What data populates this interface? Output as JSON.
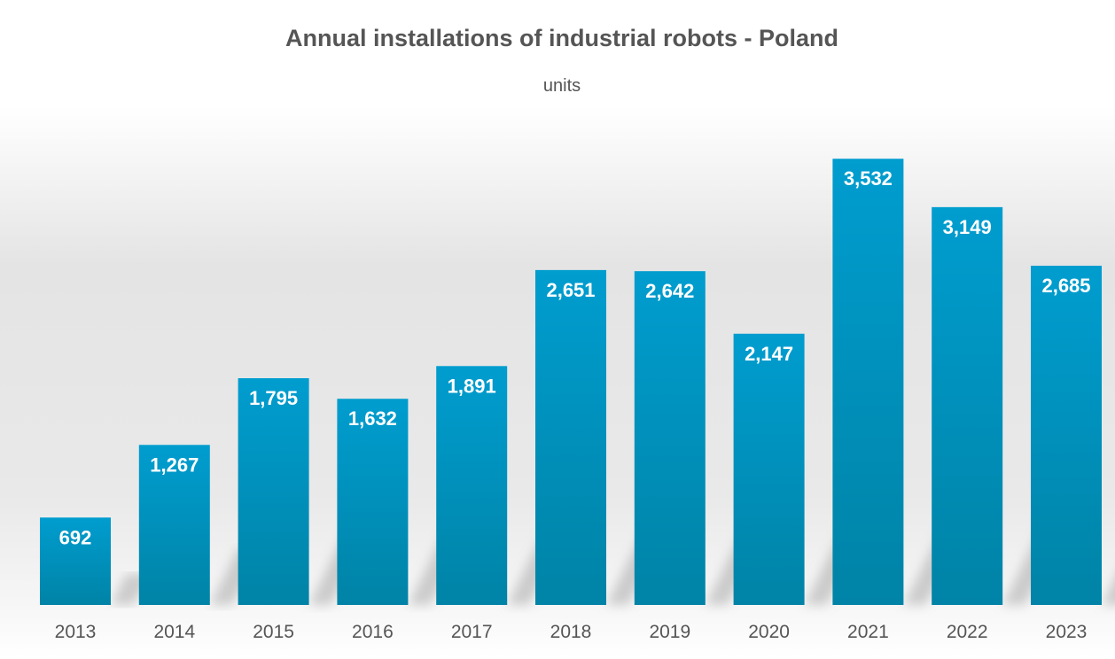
{
  "chart_data": {
    "type": "bar",
    "title": "Annual installations of industrial robots - Poland",
    "subtitle": "units",
    "categories": [
      "2013",
      "2014",
      "2015",
      "2016",
      "2017",
      "2018",
      "2019",
      "2020",
      "2021",
      "2022",
      "2023"
    ],
    "values": [
      692,
      1267,
      1795,
      1632,
      1891,
      2651,
      2642,
      2147,
      3532,
      3149,
      2685
    ],
    "data_labels": [
      "692",
      "1,267",
      "1,795",
      "1,632",
      "1,891",
      "2,651",
      "2,642",
      "2,147",
      "3,532",
      "3,149",
      "2,685"
    ],
    "xlabel": "",
    "ylabel": "",
    "ylim": [
      0,
      3800
    ],
    "grid": false,
    "legend": "none",
    "colors": {
      "bar_top": "#009dcf",
      "bar_bottom": "#0083a6",
      "text": "#555555",
      "label": "#ffffff"
    }
  }
}
